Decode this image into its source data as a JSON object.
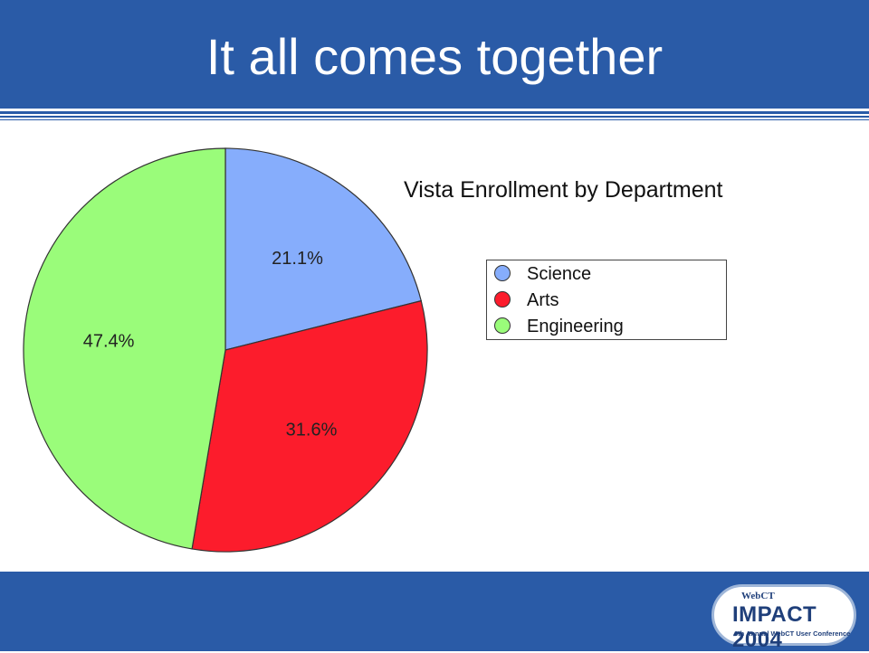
{
  "slide": {
    "title": "It all comes together",
    "colors": {
      "band": "#2a5ba7"
    }
  },
  "chart_data": {
    "type": "pie",
    "title": "Vista Enrollment by Department",
    "slices": [
      {
        "label": "Science",
        "value": 21.1,
        "display": "21.1%",
        "color": "#86adfc"
      },
      {
        "label": "Arts",
        "value": 31.6,
        "display": "31.6%",
        "color": "#fc1c2c"
      },
      {
        "label": "Engineering",
        "value": 47.4,
        "display": "47.4%",
        "color": "#9afc7a"
      }
    ],
    "legend_position": "right"
  },
  "logo": {
    "brand": "WebCT",
    "name": "IMPACT 2004",
    "subtitle": "6th Annual WebCT User Conference"
  }
}
